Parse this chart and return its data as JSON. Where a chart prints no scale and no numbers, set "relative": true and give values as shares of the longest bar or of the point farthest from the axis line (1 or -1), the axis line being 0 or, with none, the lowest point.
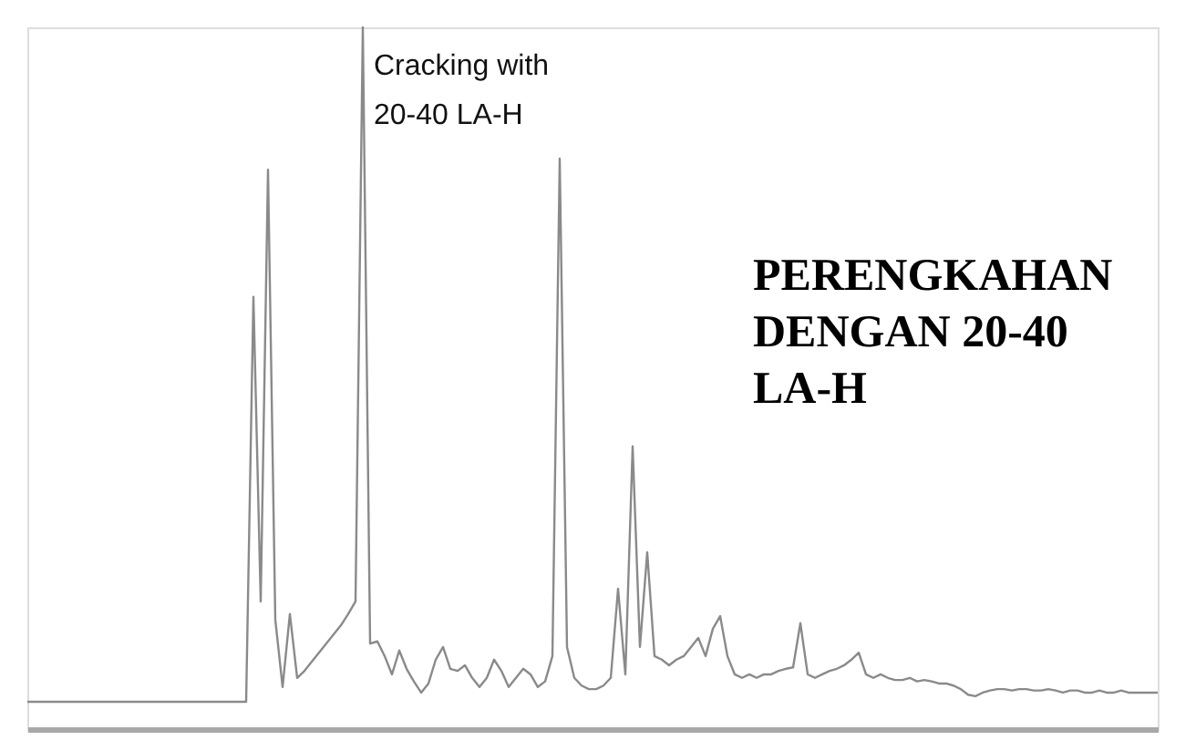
{
  "chart_data": {
    "type": "line",
    "relative": true,
    "color": "#8a8a8a",
    "annotations": [
      "Cracking with\n20-40  LA-H",
      "PERENGKAHAN\nDENGAN 20-40\nLA-H"
    ],
    "categories": [
      null,
      null,
      null,
      null,
      null,
      null,
      null,
      null,
      null,
      null,
      null,
      null,
      null,
      null,
      null,
      null,
      null,
      null,
      null,
      null,
      null,
      null,
      null,
      null,
      null,
      null,
      null,
      null,
      null,
      null,
      null,
      null,
      null,
      null,
      null,
      null,
      null,
      null,
      null,
      null,
      null,
      null,
      null,
      null,
      null,
      null,
      null,
      null,
      null,
      null,
      null,
      null,
      null,
      null,
      null,
      null,
      null,
      null,
      null,
      null,
      null,
      null,
      null,
      null,
      null,
      null,
      null,
      null,
      null,
      null,
      null,
      null,
      null,
      null,
      null,
      null,
      null,
      null,
      null,
      null,
      null,
      null,
      null,
      null,
      null,
      null,
      null,
      null,
      null,
      null,
      null,
      null,
      null,
      null,
      null,
      null,
      null,
      null,
      null,
      null,
      null,
      null,
      null,
      null,
      null,
      null,
      null,
      null,
      null,
      null,
      null,
      null,
      null,
      null,
      null,
      null,
      null,
      null,
      null,
      null,
      null,
      null,
      null,
      null,
      null,
      null,
      null,
      null,
      null,
      null,
      null,
      null,
      null,
      null,
      null,
      null,
      null,
      null,
      null,
      null,
      null,
      null,
      null,
      null,
      null,
      null,
      null,
      null,
      null,
      null,
      null,
      null,
      null,
      null,
      null,
      null
    ],
    "values": [
      0.039,
      0.039,
      0.039,
      0.039,
      0.039,
      0.039,
      0.039,
      0.039,
      0.039,
      0.039,
      0.039,
      0.039,
      0.039,
      0.039,
      0.039,
      0.039,
      0.039,
      0.039,
      0.039,
      0.039,
      0.039,
      0.039,
      0.039,
      0.039,
      0.039,
      0.039,
      0.039,
      0.039,
      0.039,
      0.039,
      0.039,
      0.616,
      0.182,
      0.797,
      0.156,
      0.06,
      0.164,
      0.073,
      0.083,
      0.096,
      0.109,
      0.122,
      0.135,
      0.148,
      0.164,
      0.182,
      1.0,
      0.122,
      0.125,
      0.104,
      0.078,
      0.112,
      0.086,
      0.068,
      0.052,
      0.065,
      0.099,
      0.117,
      0.086,
      0.083,
      0.091,
      0.073,
      0.06,
      0.073,
      0.099,
      0.083,
      0.06,
      0.073,
      0.086,
      0.078,
      0.06,
      0.068,
      0.104,
      0.813,
      0.117,
      0.073,
      0.062,
      0.057,
      0.057,
      0.062,
      0.073,
      0.2,
      0.078,
      0.403,
      0.117,
      0.252,
      0.104,
      0.099,
      0.091,
      0.099,
      0.104,
      0.117,
      0.13,
      0.104,
      0.143,
      0.161,
      0.104,
      0.078,
      0.073,
      0.078,
      0.073,
      0.078,
      0.078,
      0.083,
      0.086,
      0.088,
      0.151,
      0.078,
      0.073,
      0.078,
      0.083,
      0.086,
      0.091,
      0.099,
      0.109,
      0.078,
      0.073,
      0.078,
      0.073,
      0.07,
      0.07,
      0.073,
      0.068,
      0.07,
      0.068,
      0.065,
      0.065,
      0.062,
      0.057,
      0.049,
      0.047,
      0.052,
      0.055,
      0.057,
      0.057,
      0.055,
      0.057,
      0.057,
      0.055,
      0.055,
      0.057,
      0.055,
      0.052,
      0.055,
      0.055,
      0.052,
      0.052,
      0.055,
      0.052,
      0.052,
      0.055,
      0.052,
      0.052,
      0.052,
      0.052,
      0.052
    ]
  }
}
